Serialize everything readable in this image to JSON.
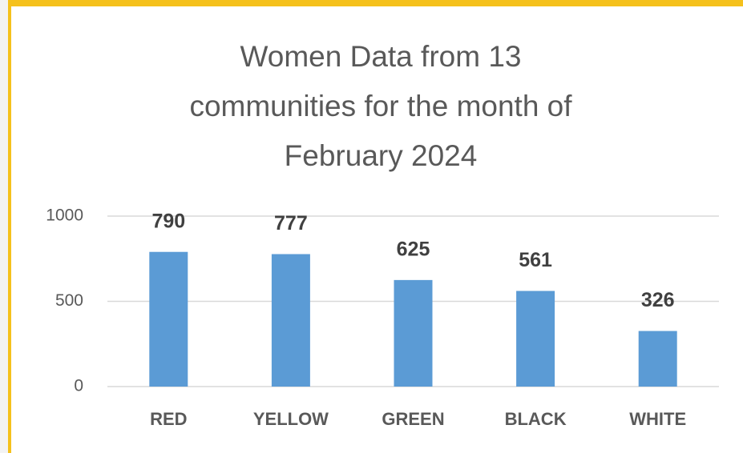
{
  "chart_data": {
    "type": "bar",
    "title": "Women Data from 13 communities for the month of February 2024",
    "categories": [
      "RED",
      "YELLOW",
      "GREEN",
      "BLACK",
      "WHITE"
    ],
    "values": [
      790,
      777,
      625,
      561,
      326
    ],
    "color": "#5b9bd5",
    "ylim": [
      0,
      1000
    ],
    "yticks": [
      0,
      500,
      1000
    ],
    "grid": true
  }
}
